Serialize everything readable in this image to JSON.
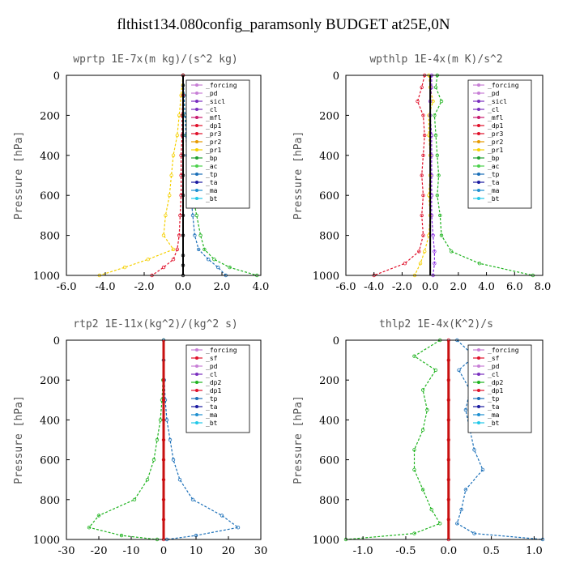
{
  "title": "flthist134.080config_paramsonly  BUDGET at25E,0N",
  "chart_data": [
    {
      "type": "line",
      "title": "wprtp  1E-7x(m kg)/(s^2 kg)",
      "ylabel": "Pressure [hPa]",
      "ylim": [
        1000,
        0
      ],
      "xlim": [
        -6,
        4
      ],
      "xticks": [
        "-6.0",
        "-4.0",
        "-2.0",
        "0.0",
        "2.0",
        "4.0"
      ],
      "xtick_values": [
        -6,
        -4,
        -2,
        0,
        2,
        4
      ],
      "yticks": [
        "0",
        "200",
        "400",
        "600",
        "800",
        "1000"
      ],
      "ytick_values": [
        0,
        200,
        400,
        600,
        800,
        1000
      ],
      "legend": [
        "_forcing",
        "_pd",
        "_sicl",
        "_cl",
        "_mfl",
        "_dp1",
        "_pr3",
        "_pr2",
        "_pr1",
        "_bp",
        "_ac",
        "_tp",
        "_ta",
        "_ma",
        "_bt"
      ],
      "legend_placement": "top-right",
      "series": [
        {
          "name": "_forcing",
          "color": "#000000",
          "x": [
            0,
            0,
            0,
            0,
            0,
            0,
            0,
            0,
            0,
            0,
            0,
            0,
            0
          ],
          "y": [
            0,
            50,
            100,
            200,
            300,
            400,
            500,
            600,
            700,
            800,
            900,
            950,
            1000
          ]
        },
        {
          "name": "_pr1",
          "color": "#f5d000",
          "x": [
            0,
            -0.1,
            -0.2,
            -0.3,
            -0.5,
            -0.6,
            -0.7,
            -0.9,
            -1.0,
            -0.5,
            -1.8,
            -3.0,
            -4.3
          ],
          "y": [
            0,
            100,
            200,
            300,
            400,
            500,
            600,
            700,
            800,
            870,
            920,
            960,
            1000
          ]
        },
        {
          "name": "_ac",
          "color": "#1fb31f",
          "x": [
            0,
            0.05,
            0.1,
            0.2,
            0.3,
            0.4,
            0.5,
            0.7,
            0.9,
            1.1,
            1.6,
            2.4,
            3.8
          ],
          "y": [
            0,
            100,
            200,
            300,
            400,
            500,
            600,
            700,
            800,
            870,
            920,
            960,
            1000
          ]
        },
        {
          "name": "_tp",
          "color": "#1a6fb8",
          "x": [
            0,
            0.05,
            0.1,
            0.15,
            0.2,
            0.3,
            0.4,
            0.5,
            0.6,
            0.8,
            1.3,
            1.8,
            2.2
          ],
          "y": [
            0,
            100,
            200,
            300,
            400,
            500,
            600,
            700,
            800,
            870,
            920,
            960,
            1000
          ]
        },
        {
          "name": "_dp1",
          "color": "#e0102a",
          "x": [
            0,
            0,
            -0.05,
            -0.05,
            -0.1,
            -0.1,
            -0.1,
            -0.15,
            -0.2,
            -0.3,
            -0.5,
            -1.0,
            -1.6
          ],
          "y": [
            0,
            100,
            200,
            300,
            400,
            500,
            600,
            700,
            800,
            870,
            920,
            960,
            1000
          ]
        }
      ]
    },
    {
      "type": "line",
      "title": "wpthlp  1E-4x(m K)/s^2",
      "ylabel": "Pressure [hPa]",
      "ylim": [
        1000,
        0
      ],
      "xlim": [
        -6,
        8
      ],
      "xticks": [
        "-6.0",
        "-4.0",
        "-2.0",
        "0.0",
        "2.0",
        "4.0",
        "6.0",
        "8.0"
      ],
      "xtick_values": [
        -6,
        -4,
        -2,
        0,
        2,
        4,
        6,
        8
      ],
      "yticks": [
        "0",
        "200",
        "400",
        "600",
        "800",
        "1000"
      ],
      "ytick_values": [
        0,
        200,
        400,
        600,
        800,
        1000
      ],
      "legend": [
        "_forcing",
        "_pd",
        "_sicl",
        "_cl",
        "_mfl",
        "_dp1",
        "_pr3",
        "_pr2",
        "_pr1",
        "_bp",
        "_ac",
        "_tp",
        "_ta",
        "_ma",
        "_bt"
      ],
      "legend_placement": "top-right",
      "series": [
        {
          "name": "_ac",
          "color": "#1fb31f",
          "x": [
            0.5,
            0.4,
            0.8,
            0.3,
            0.4,
            0.5,
            0.6,
            0.5,
            0.7,
            0.8,
            1.5,
            3.5,
            7.3
          ],
          "y": [
            0,
            60,
            130,
            200,
            300,
            400,
            500,
            600,
            700,
            800,
            880,
            940,
            1000
          ]
        },
        {
          "name": "_dp1",
          "color": "#e0102a",
          "x": [
            -0.4,
            -0.6,
            -0.9,
            -0.5,
            -0.4,
            -0.5,
            -0.6,
            -0.5,
            -0.6,
            -0.5,
            -0.8,
            -1.8,
            -4.0
          ],
          "y": [
            0,
            60,
            130,
            200,
            300,
            400,
            500,
            600,
            700,
            800,
            880,
            940,
            1000
          ]
        },
        {
          "name": "_pr1",
          "color": "#f5d000",
          "x": [
            -0.1,
            0,
            0.2,
            -0.1,
            -0.1,
            0,
            0,
            -0.1,
            0,
            -0.1,
            -0.4,
            -0.7,
            -1.1
          ],
          "y": [
            0,
            60,
            130,
            200,
            300,
            400,
            500,
            600,
            700,
            800,
            880,
            940,
            1000
          ]
        },
        {
          "name": "_mfl",
          "color": "#8a2be2",
          "x": [
            0.1,
            0.1,
            0,
            0,
            0.1,
            0.1,
            0.1,
            0.1,
            0.1,
            0.2,
            0.3,
            0.3,
            0.2
          ],
          "y": [
            0,
            60,
            130,
            200,
            300,
            400,
            500,
            600,
            700,
            800,
            880,
            940,
            1000
          ]
        }
      ]
    },
    {
      "type": "line",
      "title": "rtp2  1E-11x(kg^2)/(kg^2 s)",
      "ylabel": "Pressure [hPa]",
      "ylim": [
        1000,
        0
      ],
      "xlim": [
        -30,
        30
      ],
      "xticks": [
        "-30",
        "-20",
        "-10",
        "0",
        "10",
        "20",
        "30"
      ],
      "xtick_values": [
        -30,
        -20,
        -10,
        0,
        10,
        20,
        30
      ],
      "yticks": [
        "0",
        "200",
        "400",
        "600",
        "800",
        "1000"
      ],
      "ytick_values": [
        0,
        200,
        400,
        600,
        800,
        1000
      ],
      "legend": [
        "_forcing",
        "_sf",
        "_pd",
        "_cl",
        "_dp2",
        "_dp1",
        "_tp",
        "_ta",
        "_ma",
        "_bt"
      ],
      "legend_placement": "top-right",
      "series": [
        {
          "name": "_forcing",
          "color": "#e0102a",
          "x": [
            0,
            0,
            0,
            0,
            0,
            0,
            0,
            0,
            0,
            0,
            0
          ],
          "y": [
            0,
            100,
            200,
            300,
            400,
            500,
            600,
            700,
            800,
            900,
            1000
          ]
        },
        {
          "name": "_dp1",
          "color": "#1fb31f",
          "x": [
            0,
            0,
            -0.2,
            -0.5,
            -1.0,
            -2.0,
            -3.0,
            -5.0,
            -9.0,
            -20.0,
            -23.0,
            -13.0,
            -2.0
          ],
          "y": [
            0,
            100,
            200,
            300,
            400,
            500,
            600,
            700,
            800,
            880,
            940,
            980,
            1000
          ]
        },
        {
          "name": "_tp",
          "color": "#1a6fb8",
          "x": [
            0,
            0,
            0.2,
            0.5,
            1.0,
            2.0,
            3.0,
            5.0,
            9.0,
            18.0,
            23.0,
            10.0,
            1.0
          ],
          "y": [
            0,
            100,
            200,
            300,
            400,
            500,
            600,
            700,
            800,
            880,
            940,
            980,
            1000
          ]
        }
      ]
    },
    {
      "type": "line",
      "title": "thlp2  1E-4x(K^2)/s",
      "ylabel": "Pressure [hPa]",
      "ylim": [
        1000,
        0
      ],
      "xlim": [
        -1.2,
        1.1
      ],
      "xticks": [
        "-1.0",
        "-0.5",
        "0.0",
        "0.5",
        "1.0"
      ],
      "xtick_values": [
        -1.0,
        -0.5,
        0.0,
        0.5,
        1.0
      ],
      "yticks": [
        "0",
        "200",
        "400",
        "600",
        "800",
        "1000"
      ],
      "ytick_values": [
        0,
        200,
        400,
        600,
        800,
        1000
      ],
      "legend": [
        "_forcing",
        "_sf",
        "_pd",
        "_cl",
        "_dp2",
        "_dp1",
        "_tp",
        "_ta",
        "_ma",
        "_bt"
      ],
      "legend_placement": "top-right",
      "series": [
        {
          "name": "_forcing",
          "color": "#e0102a",
          "x": [
            0,
            0,
            0,
            0,
            0,
            0,
            0,
            0,
            0,
            0,
            0
          ],
          "y": [
            0,
            100,
            200,
            300,
            400,
            500,
            600,
            700,
            800,
            900,
            1000
          ]
        },
        {
          "name": "_dp1",
          "color": "#1fb31f",
          "x": [
            -0.1,
            -0.4,
            -0.15,
            -0.3,
            -0.25,
            -0.3,
            -0.4,
            -0.4,
            -0.3,
            -0.2,
            -0.1,
            -0.4,
            -1.2
          ],
          "y": [
            0,
            80,
            150,
            250,
            350,
            450,
            550,
            650,
            750,
            850,
            920,
            970,
            1000
          ]
        },
        {
          "name": "_tp",
          "color": "#1a6fb8",
          "x": [
            0.1,
            0.3,
            0.12,
            0.25,
            0.2,
            0.25,
            0.3,
            0.4,
            0.2,
            0.15,
            0.1,
            0.3,
            1.1
          ],
          "y": [
            0,
            80,
            150,
            250,
            350,
            450,
            550,
            650,
            750,
            850,
            920,
            970,
            1000
          ]
        }
      ]
    }
  ]
}
